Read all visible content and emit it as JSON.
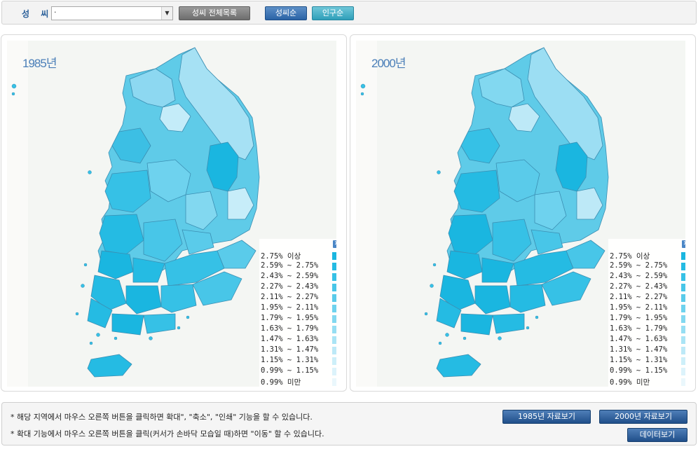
{
  "toolbar": {
    "surname_label": "성 씨",
    "surname_value": "·",
    "full_list_button": "성씨 전체목록",
    "sort_surname_button": "성씨순",
    "sort_population_button": "인구순"
  },
  "maps": [
    {
      "year": "1985년"
    },
    {
      "year": "2000년"
    }
  ],
  "legend": {
    "close_symbol": "✕",
    "items": [
      {
        "label": "2.75% 이상",
        "color": "#1ab6e0"
      },
      {
        "label": "2.59% ~ 2.75%",
        "color": "#25bbe3"
      },
      {
        "label": "2.43% ~ 2.59%",
        "color": "#36c1e6"
      },
      {
        "label": "2.27% ~ 2.43%",
        "color": "#48c6e8"
      },
      {
        "label": "2.11% ~ 2.27%",
        "color": "#5acbea"
      },
      {
        "label": "1.95% ~ 2.11%",
        "color": "#6ed2ee"
      },
      {
        "label": "1.79% ~ 1.95%",
        "color": "#82d8f0"
      },
      {
        "label": "1.63% ~ 1.79%",
        "color": "#96def3"
      },
      {
        "label": "1.47% ~ 1.63%",
        "color": "#aae4f5"
      },
      {
        "label": "1.31% ~ 1.47%",
        "color": "#bde9f7"
      },
      {
        "label": "1.15% ~ 1.31%",
        "color": "#cdeff9"
      },
      {
        "label": "0.99% ~ 1.15%",
        "color": "#dcf3fb"
      },
      {
        "label": "0.99% 미만",
        "color": "#eaf7fc"
      }
    ]
  },
  "footer": {
    "note1": "* 해당 지역에서 마우스 오른쪽 버튼을 클릭하면 확대\", \"축소\", \"인쇄\" 기능을 할 수 있습니다.",
    "note2": "* 확대 기능에서 마우스 오른쪽 버튼을 클릭(커서가 손바닥 모습일 때)하면 \"이동\" 할 수 있습니다.",
    "btn_1985": "1985년 자료보기",
    "btn_2000": "2000년 자료보기",
    "btn_data": "데이터보기"
  }
}
